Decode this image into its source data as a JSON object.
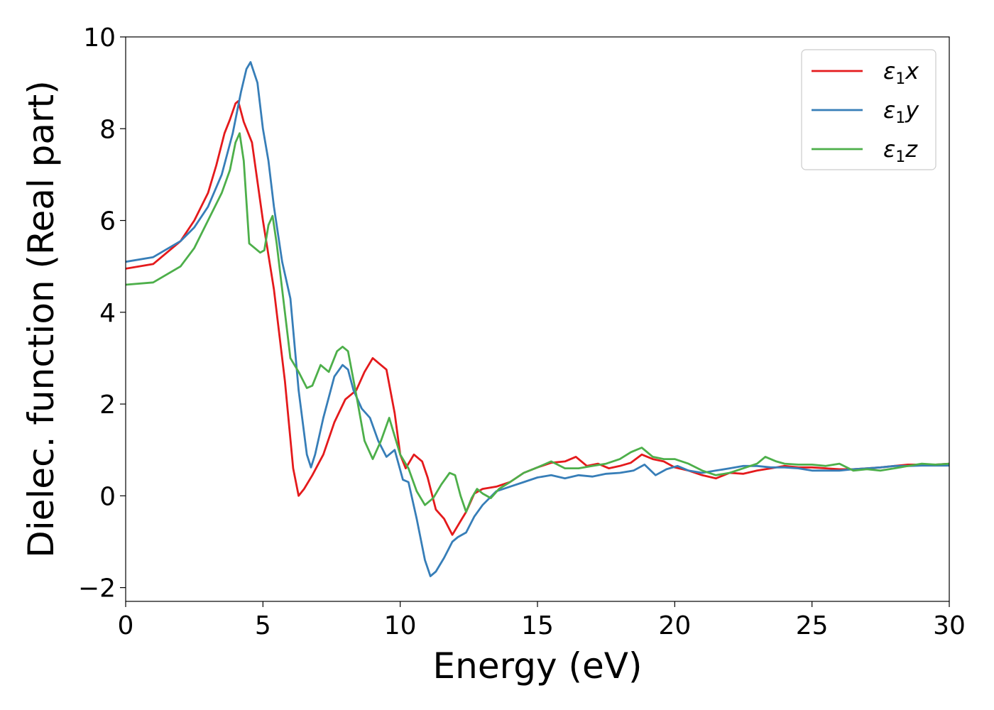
{
  "chart_data": {
    "type": "line",
    "title": "",
    "xlabel": "Energy (eV)",
    "ylabel": "Dielec. function (Real part)",
    "xlim": [
      0,
      30
    ],
    "ylim": [
      -2.3,
      10
    ],
    "xticks": [
      0,
      5,
      10,
      15,
      20,
      25,
      30
    ],
    "xtick_labels": [
      "0",
      "5",
      "10",
      "15",
      "20",
      "25",
      "30"
    ],
    "yticks": [
      -2,
      0,
      2,
      4,
      6,
      8,
      10
    ],
    "ytick_labels": [
      "−2",
      "0",
      "2",
      "4",
      "6",
      "8",
      "10"
    ],
    "grid": false,
    "legend_position": "top-right",
    "series": [
      {
        "name": "ε₁x",
        "legend_main": "ε",
        "legend_sub": "1",
        "legend_tail": "x",
        "color": "#e41a1c",
        "x": [
          0,
          1,
          2,
          2.5,
          3,
          3.3,
          3.6,
          3.8,
          4.0,
          4.1,
          4.3,
          4.6,
          5.0,
          5.4,
          5.8,
          6.1,
          6.3,
          6.5,
          6.8,
          7.2,
          7.6,
          8.0,
          8.4,
          8.7,
          9.0,
          9.2,
          9.5,
          9.8,
          10.0,
          10.2,
          10.5,
          10.8,
          11.0,
          11.3,
          11.6,
          11.9,
          12.2,
          12.4,
          12.7,
          13.0,
          13.5,
          14.0,
          14.5,
          15.0,
          15.5,
          16.0,
          16.4,
          16.8,
          17.2,
          17.6,
          18.0,
          18.4,
          18.8,
          19.2,
          19.6,
          20.0,
          20.5,
          21.0,
          21.5,
          22.0,
          22.5,
          23.0,
          23.5,
          24.0,
          24.5,
          25.0,
          25.5,
          26.0,
          26.5,
          27.0,
          27.5,
          28.0,
          28.5,
          29.0,
          29.5,
          30.0
        ],
        "y": [
          4.95,
          5.05,
          5.55,
          6.0,
          6.6,
          7.2,
          7.9,
          8.2,
          8.55,
          8.6,
          8.15,
          7.7,
          6.0,
          4.5,
          2.5,
          0.6,
          0.0,
          0.15,
          0.45,
          0.9,
          1.6,
          2.1,
          2.3,
          2.7,
          3.0,
          2.9,
          2.75,
          1.8,
          0.9,
          0.6,
          0.9,
          0.75,
          0.4,
          -0.3,
          -0.5,
          -0.85,
          -0.55,
          -0.35,
          0.05,
          0.15,
          0.2,
          0.3,
          0.5,
          0.62,
          0.72,
          0.75,
          0.85,
          0.65,
          0.7,
          0.6,
          0.65,
          0.72,
          0.9,
          0.8,
          0.75,
          0.62,
          0.55,
          0.45,
          0.38,
          0.5,
          0.48,
          0.55,
          0.6,
          0.65,
          0.62,
          0.62,
          0.6,
          0.58,
          0.58,
          0.6,
          0.62,
          0.65,
          0.68,
          0.68,
          0.68,
          0.7
        ]
      },
      {
        "name": "ε₁y",
        "legend_main": "ε",
        "legend_sub": "1",
        "legend_tail": "y",
        "color": "#377eb8",
        "x": [
          0,
          1,
          2,
          2.5,
          3,
          3.5,
          3.9,
          4.2,
          4.4,
          4.55,
          4.8,
          5.0,
          5.2,
          5.4,
          5.7,
          6.0,
          6.3,
          6.6,
          6.75,
          6.9,
          7.2,
          7.6,
          7.9,
          8.1,
          8.3,
          8.6,
          8.9,
          9.2,
          9.5,
          9.8,
          10.1,
          10.3,
          10.6,
          10.9,
          11.1,
          11.3,
          11.6,
          11.9,
          12.1,
          12.4,
          12.7,
          13.0,
          13.5,
          14.0,
          14.5,
          15.0,
          15.5,
          16.0,
          16.5,
          17.0,
          17.5,
          18.0,
          18.5,
          18.9,
          19.3,
          19.7,
          20.1,
          20.5,
          21.0,
          21.5,
          22.0,
          22.5,
          23.0,
          23.5,
          24.0,
          24.5,
          25.0,
          25.5,
          26.0,
          26.5,
          27.0,
          27.5,
          28.0,
          28.5,
          29.0,
          29.5,
          30.0
        ],
        "y": [
          5.1,
          5.2,
          5.55,
          5.85,
          6.3,
          7.0,
          7.9,
          8.8,
          9.3,
          9.45,
          9.0,
          8.0,
          7.3,
          6.3,
          5.1,
          4.3,
          2.3,
          0.9,
          0.62,
          0.9,
          1.7,
          2.6,
          2.85,
          2.75,
          2.3,
          1.9,
          1.7,
          1.2,
          0.85,
          1.0,
          0.35,
          0.3,
          -0.5,
          -1.4,
          -1.75,
          -1.65,
          -1.35,
          -1.0,
          -0.9,
          -0.8,
          -0.45,
          -0.2,
          0.1,
          0.2,
          0.3,
          0.4,
          0.45,
          0.38,
          0.45,
          0.42,
          0.48,
          0.5,
          0.55,
          0.68,
          0.45,
          0.58,
          0.65,
          0.55,
          0.5,
          0.55,
          0.6,
          0.65,
          0.65,
          0.62,
          0.62,
          0.6,
          0.55,
          0.55,
          0.55,
          0.58,
          0.6,
          0.62,
          0.65,
          0.65,
          0.66,
          0.66,
          0.66
        ]
      },
      {
        "name": "ε₁z",
        "legend_main": "ε",
        "legend_sub": "1",
        "legend_tail": "z",
        "color": "#4daf4a",
        "x": [
          0,
          1,
          2,
          2.5,
          3,
          3.5,
          3.8,
          4.0,
          4.15,
          4.3,
          4.5,
          4.7,
          4.9,
          5.05,
          5.2,
          5.35,
          5.5,
          5.7,
          6.0,
          6.3,
          6.6,
          6.8,
          7.1,
          7.4,
          7.7,
          7.9,
          8.1,
          8.4,
          8.7,
          9.0,
          9.3,
          9.6,
          9.8,
          10.0,
          10.3,
          10.6,
          10.9,
          11.2,
          11.5,
          11.8,
          12.0,
          12.2,
          12.4,
          12.6,
          12.8,
          13.0,
          13.3,
          13.6,
          14.0,
          14.5,
          15.0,
          15.5,
          16.0,
          16.5,
          17.0,
          17.5,
          18.0,
          18.4,
          18.8,
          19.2,
          19.6,
          20.0,
          20.5,
          21.0,
          21.5,
          22.0,
          22.5,
          23.0,
          23.3,
          23.7,
          24.0,
          24.5,
          25.0,
          25.5,
          26.0,
          26.5,
          27.0,
          27.5,
          28.0,
          28.5,
          29.0,
          29.5,
          30.0
        ],
        "y": [
          4.6,
          4.65,
          5.0,
          5.4,
          6.0,
          6.6,
          7.1,
          7.7,
          7.9,
          7.3,
          5.5,
          5.4,
          5.3,
          5.35,
          5.9,
          6.1,
          5.5,
          4.5,
          3.0,
          2.7,
          2.35,
          2.4,
          2.85,
          2.7,
          3.15,
          3.25,
          3.15,
          2.2,
          1.2,
          0.8,
          1.2,
          1.7,
          1.3,
          0.9,
          0.6,
          0.1,
          -0.2,
          -0.05,
          0.25,
          0.5,
          0.45,
          0.0,
          -0.35,
          -0.05,
          0.15,
          0.05,
          -0.05,
          0.15,
          0.3,
          0.5,
          0.62,
          0.75,
          0.6,
          0.6,
          0.65,
          0.7,
          0.8,
          0.95,
          1.05,
          0.85,
          0.8,
          0.8,
          0.7,
          0.55,
          0.45,
          0.5,
          0.6,
          0.7,
          0.85,
          0.75,
          0.7,
          0.68,
          0.68,
          0.65,
          0.7,
          0.55,
          0.58,
          0.55,
          0.6,
          0.65,
          0.7,
          0.68,
          0.7
        ]
      }
    ]
  }
}
